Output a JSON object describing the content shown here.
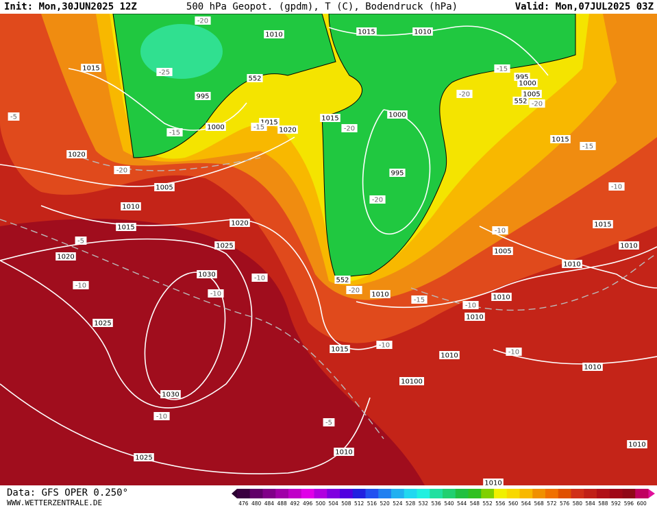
{
  "header": {
    "init": "Init: Mon,30JUN2025 12Z",
    "title": "500 hPa Geopot. (gpdm), T (C), Bodendruck (hPa)",
    "valid": "Valid: Mon,07JUL2025 03Z"
  },
  "footer": {
    "data_source": "Data: GFS OPER 0.250°",
    "website": "WWW.WETTERZENTRALE.DE"
  },
  "colorbar": {
    "labels": [
      476,
      480,
      484,
      488,
      492,
      496,
      500,
      504,
      508,
      512,
      516,
      520,
      524,
      528,
      532,
      536,
      540,
      544,
      548,
      552,
      556,
      560,
      564,
      568,
      572,
      576,
      580,
      584,
      588,
      592,
      596,
      600
    ],
    "colors": [
      "#3a0040",
      "#600068",
      "#800088",
      "#a000a8",
      "#c000c8",
      "#e000e8",
      "#b000e0",
      "#8000e0",
      "#5000e0",
      "#2020e0",
      "#2050f0",
      "#2080f0",
      "#20b0f0",
      "#20d8f0",
      "#20f0e0",
      "#20e0a0",
      "#20d070",
      "#20c040",
      "#30c020",
      "#80d000",
      "#f0f000",
      "#f8d800",
      "#f8b800",
      "#f09000",
      "#f07000",
      "#e05000",
      "#d03018",
      "#c02018",
      "#b01018",
      "#a00818",
      "#900818",
      "#c00060"
    ]
  },
  "map_labels": [
    "1015",
    "1010",
    "1015",
    "1010",
    "-20",
    "-25",
    "552",
    "995",
    "-15",
    "1000",
    "1015",
    "1020",
    "-15",
    "1015",
    "-20",
    "1000",
    "-20",
    "-15",
    "995",
    "1000",
    "1005",
    "-20",
    "552",
    "1015",
    "-15",
    "-10",
    "-5",
    "1020",
    "-20",
    "1005",
    "1010",
    "1015",
    "-5",
    "1020",
    "1025",
    "1020",
    "-10",
    "1030",
    "-10",
    "-10",
    "995",
    "-20",
    "552",
    "-20",
    "1010",
    "-15",
    "-10",
    "1005",
    "1015",
    "1010",
    "1010",
    "1010",
    "-10",
    "1010",
    "1025",
    "1015",
    "-10",
    "1010",
    "-10",
    "1010",
    "10100",
    "1030",
    "-10",
    "-5",
    "1010",
    "1010",
    "1025",
    "1010"
  ]
}
